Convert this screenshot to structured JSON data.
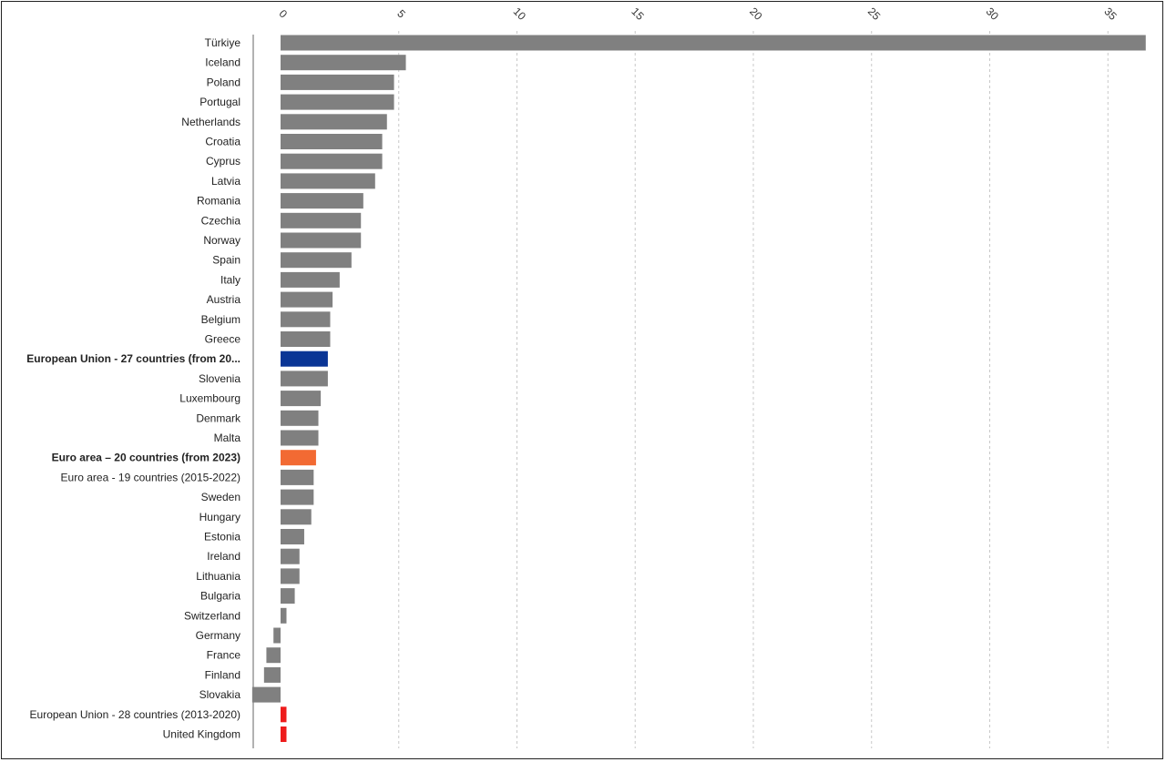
{
  "chart_data": {
    "type": "bar",
    "orientation": "horizontal",
    "xlim": [
      -1.2,
      36.7
    ],
    "x_ticks": [
      0,
      5,
      10,
      15,
      20,
      25,
      30,
      35
    ],
    "x_tick_labels": [
      "0",
      "5",
      "10",
      "15",
      "20",
      "25",
      "30",
      "35"
    ],
    "grid": "vertical dashed",
    "categories": [
      "Türkiye",
      "Iceland",
      "Poland",
      "Portugal",
      "Netherlands",
      "Croatia",
      "Cyprus",
      "Latvia",
      "Romania",
      "Czechia",
      "Norway",
      "Spain",
      "Italy",
      "Austria",
      "Belgium",
      "Greece",
      "European Union - 27 countries (from 20...",
      "Slovenia",
      "Luxembourg",
      "Denmark",
      "Malta",
      "Euro area – 20 countries (from 2023)",
      "Euro area - 19 countries  (2015-2022)",
      "Sweden",
      "Hungary",
      "Estonia",
      "Ireland",
      "Lithuania",
      "Bulgaria",
      "Switzerland",
      "Germany",
      "France",
      "Finland",
      "Slovakia",
      "European Union - 28 countries (2013-2020)",
      "United Kingdom"
    ],
    "values": [
      36.6,
      5.3,
      4.8,
      4.8,
      4.5,
      4.3,
      4.3,
      4.0,
      3.5,
      3.4,
      3.4,
      3.0,
      2.5,
      2.2,
      2.1,
      2.1,
      2.0,
      2.0,
      1.7,
      1.6,
      1.6,
      1.5,
      1.4,
      1.4,
      1.3,
      1.0,
      0.8,
      0.8,
      0.6,
      0.25,
      -0.3,
      -0.6,
      -0.7,
      -1.2,
      0.25,
      0.25
    ],
    "bold_categories": [
      16,
      21
    ],
    "bar_colors": {
      "default": "#808080",
      "16": "#0a3595",
      "21": "#f26a33",
      "34": "#ee1c1c",
      "35": "#ee1c1c"
    }
  }
}
